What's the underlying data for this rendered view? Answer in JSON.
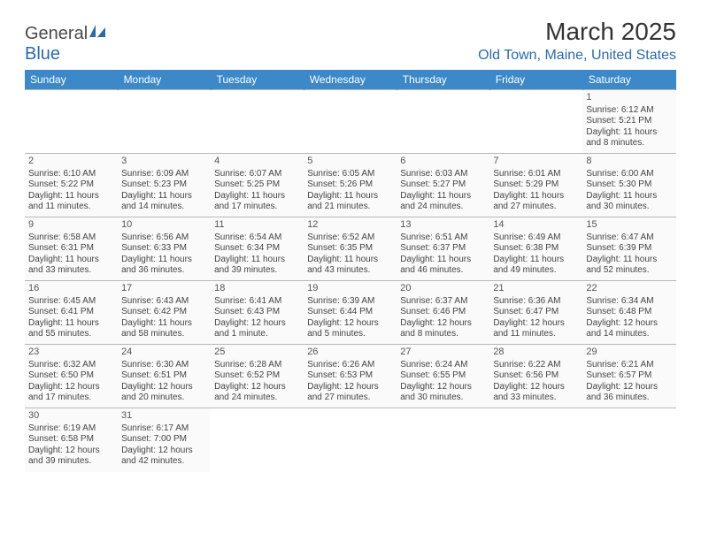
{
  "brand": {
    "part1": "General",
    "part2": "Blue"
  },
  "title": "March 2025",
  "location": "Old Town, Maine, United States",
  "colors": {
    "header_bg": "#3c88c8",
    "header_text": "#ffffff",
    "accent": "#2d6aa8",
    "cell_bg": "#fafafa",
    "border": "#b8b8b8",
    "text": "#444444"
  },
  "weekdays": [
    "Sunday",
    "Monday",
    "Tuesday",
    "Wednesday",
    "Thursday",
    "Friday",
    "Saturday"
  ],
  "weeks": [
    [
      null,
      null,
      null,
      null,
      null,
      null,
      {
        "day": "1",
        "sunrise": "Sunrise: 6:12 AM",
        "sunset": "Sunset: 5:21 PM",
        "daylight1": "Daylight: 11 hours",
        "daylight2": "and 8 minutes."
      }
    ],
    [
      {
        "day": "2",
        "sunrise": "Sunrise: 6:10 AM",
        "sunset": "Sunset: 5:22 PM",
        "daylight1": "Daylight: 11 hours",
        "daylight2": "and 11 minutes."
      },
      {
        "day": "3",
        "sunrise": "Sunrise: 6:09 AM",
        "sunset": "Sunset: 5:23 PM",
        "daylight1": "Daylight: 11 hours",
        "daylight2": "and 14 minutes."
      },
      {
        "day": "4",
        "sunrise": "Sunrise: 6:07 AM",
        "sunset": "Sunset: 5:25 PM",
        "daylight1": "Daylight: 11 hours",
        "daylight2": "and 17 minutes."
      },
      {
        "day": "5",
        "sunrise": "Sunrise: 6:05 AM",
        "sunset": "Sunset: 5:26 PM",
        "daylight1": "Daylight: 11 hours",
        "daylight2": "and 21 minutes."
      },
      {
        "day": "6",
        "sunrise": "Sunrise: 6:03 AM",
        "sunset": "Sunset: 5:27 PM",
        "daylight1": "Daylight: 11 hours",
        "daylight2": "and 24 minutes."
      },
      {
        "day": "7",
        "sunrise": "Sunrise: 6:01 AM",
        "sunset": "Sunset: 5:29 PM",
        "daylight1": "Daylight: 11 hours",
        "daylight2": "and 27 minutes."
      },
      {
        "day": "8",
        "sunrise": "Sunrise: 6:00 AM",
        "sunset": "Sunset: 5:30 PM",
        "daylight1": "Daylight: 11 hours",
        "daylight2": "and 30 minutes."
      }
    ],
    [
      {
        "day": "9",
        "sunrise": "Sunrise: 6:58 AM",
        "sunset": "Sunset: 6:31 PM",
        "daylight1": "Daylight: 11 hours",
        "daylight2": "and 33 minutes."
      },
      {
        "day": "10",
        "sunrise": "Sunrise: 6:56 AM",
        "sunset": "Sunset: 6:33 PM",
        "daylight1": "Daylight: 11 hours",
        "daylight2": "and 36 minutes."
      },
      {
        "day": "11",
        "sunrise": "Sunrise: 6:54 AM",
        "sunset": "Sunset: 6:34 PM",
        "daylight1": "Daylight: 11 hours",
        "daylight2": "and 39 minutes."
      },
      {
        "day": "12",
        "sunrise": "Sunrise: 6:52 AM",
        "sunset": "Sunset: 6:35 PM",
        "daylight1": "Daylight: 11 hours",
        "daylight2": "and 43 minutes."
      },
      {
        "day": "13",
        "sunrise": "Sunrise: 6:51 AM",
        "sunset": "Sunset: 6:37 PM",
        "daylight1": "Daylight: 11 hours",
        "daylight2": "and 46 minutes."
      },
      {
        "day": "14",
        "sunrise": "Sunrise: 6:49 AM",
        "sunset": "Sunset: 6:38 PM",
        "daylight1": "Daylight: 11 hours",
        "daylight2": "and 49 minutes."
      },
      {
        "day": "15",
        "sunrise": "Sunrise: 6:47 AM",
        "sunset": "Sunset: 6:39 PM",
        "daylight1": "Daylight: 11 hours",
        "daylight2": "and 52 minutes."
      }
    ],
    [
      {
        "day": "16",
        "sunrise": "Sunrise: 6:45 AM",
        "sunset": "Sunset: 6:41 PM",
        "daylight1": "Daylight: 11 hours",
        "daylight2": "and 55 minutes."
      },
      {
        "day": "17",
        "sunrise": "Sunrise: 6:43 AM",
        "sunset": "Sunset: 6:42 PM",
        "daylight1": "Daylight: 11 hours",
        "daylight2": "and 58 minutes."
      },
      {
        "day": "18",
        "sunrise": "Sunrise: 6:41 AM",
        "sunset": "Sunset: 6:43 PM",
        "daylight1": "Daylight: 12 hours",
        "daylight2": "and 1 minute."
      },
      {
        "day": "19",
        "sunrise": "Sunrise: 6:39 AM",
        "sunset": "Sunset: 6:44 PM",
        "daylight1": "Daylight: 12 hours",
        "daylight2": "and 5 minutes."
      },
      {
        "day": "20",
        "sunrise": "Sunrise: 6:37 AM",
        "sunset": "Sunset: 6:46 PM",
        "daylight1": "Daylight: 12 hours",
        "daylight2": "and 8 minutes."
      },
      {
        "day": "21",
        "sunrise": "Sunrise: 6:36 AM",
        "sunset": "Sunset: 6:47 PM",
        "daylight1": "Daylight: 12 hours",
        "daylight2": "and 11 minutes."
      },
      {
        "day": "22",
        "sunrise": "Sunrise: 6:34 AM",
        "sunset": "Sunset: 6:48 PM",
        "daylight1": "Daylight: 12 hours",
        "daylight2": "and 14 minutes."
      }
    ],
    [
      {
        "day": "23",
        "sunrise": "Sunrise: 6:32 AM",
        "sunset": "Sunset: 6:50 PM",
        "daylight1": "Daylight: 12 hours",
        "daylight2": "and 17 minutes."
      },
      {
        "day": "24",
        "sunrise": "Sunrise: 6:30 AM",
        "sunset": "Sunset: 6:51 PM",
        "daylight1": "Daylight: 12 hours",
        "daylight2": "and 20 minutes."
      },
      {
        "day": "25",
        "sunrise": "Sunrise: 6:28 AM",
        "sunset": "Sunset: 6:52 PM",
        "daylight1": "Daylight: 12 hours",
        "daylight2": "and 24 minutes."
      },
      {
        "day": "26",
        "sunrise": "Sunrise: 6:26 AM",
        "sunset": "Sunset: 6:53 PM",
        "daylight1": "Daylight: 12 hours",
        "daylight2": "and 27 minutes."
      },
      {
        "day": "27",
        "sunrise": "Sunrise: 6:24 AM",
        "sunset": "Sunset: 6:55 PM",
        "daylight1": "Daylight: 12 hours",
        "daylight2": "and 30 minutes."
      },
      {
        "day": "28",
        "sunrise": "Sunrise: 6:22 AM",
        "sunset": "Sunset: 6:56 PM",
        "daylight1": "Daylight: 12 hours",
        "daylight2": "and 33 minutes."
      },
      {
        "day": "29",
        "sunrise": "Sunrise: 6:21 AM",
        "sunset": "Sunset: 6:57 PM",
        "daylight1": "Daylight: 12 hours",
        "daylight2": "and 36 minutes."
      }
    ],
    [
      {
        "day": "30",
        "sunrise": "Sunrise: 6:19 AM",
        "sunset": "Sunset: 6:58 PM",
        "daylight1": "Daylight: 12 hours",
        "daylight2": "and 39 minutes."
      },
      {
        "day": "31",
        "sunrise": "Sunrise: 6:17 AM",
        "sunset": "Sunset: 7:00 PM",
        "daylight1": "Daylight: 12 hours",
        "daylight2": "and 42 minutes."
      },
      null,
      null,
      null,
      null,
      null
    ]
  ]
}
